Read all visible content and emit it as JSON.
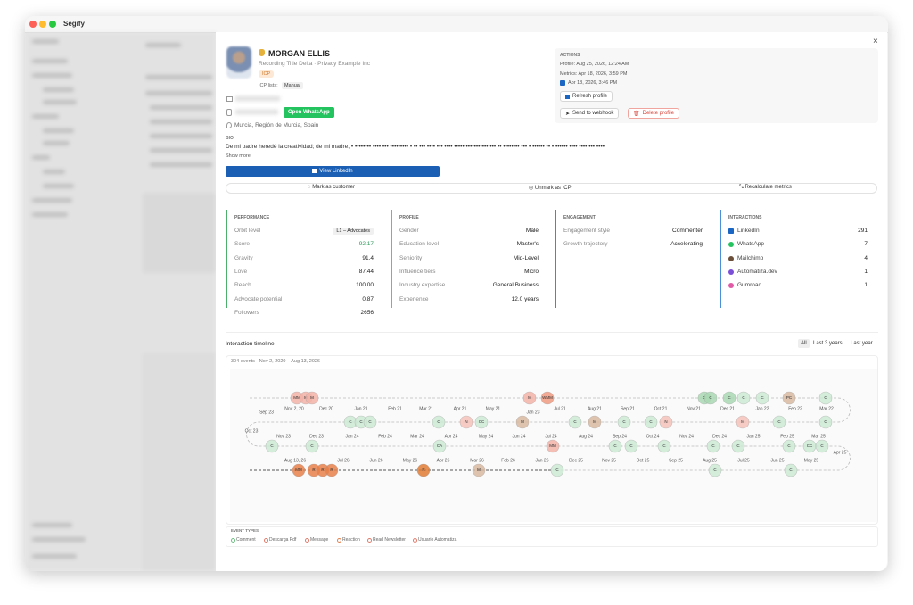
{
  "window": {
    "title": "Segify"
  },
  "profile": {
    "name": "MORGAN ELLIS",
    "subtitle": "Recording Title Delta · Privacy Example Inc",
    "badge": "ICP",
    "icp_lists_label": "ICP lists:",
    "icp_list": "Manual",
    "whatsapp_button": "Open WhatsApp",
    "location": "Murcia, Región de Murcia, Spain",
    "bio_label": "BIO",
    "bio": "De mi padre heredé la creatividad; de mi madre, • •••••••• •••• ••• ••••••••• • •• ••• •••• ••• •••• ••••• ••••••••••• ••• •• •••••••• ••• • •••••• •• • •••••• •••• •••• ••• ••••",
    "show_more": "Show more",
    "linkedin_button": "View LinkedIn"
  },
  "actions": {
    "label": "ACTIONS",
    "profile_updated": "Profile: Aug 25, 2026, 12:24 AM",
    "metrics_updated": "Metrics: Apr 18, 2026, 3:59 PM",
    "linkedin_updated": "Apr 18, 2026, 3:46 PM",
    "refresh": "Refresh profile",
    "webhook": "Send to webhook",
    "delete": "Delete profile"
  },
  "toolbar": [
    "Mark as customer",
    "Unmark as ICP",
    "Recalculate metrics"
  ],
  "sections": [
    {
      "title": "PERFORMANCE",
      "color": "#4caf6a",
      "rows": [
        {
          "label": "Orbit level",
          "value": "L1 – Advocates"
        },
        {
          "label": "Score",
          "value": "92.17",
          "color": "#2e9e5b"
        },
        {
          "label": "Gravity",
          "value": "91.4"
        },
        {
          "label": "Love",
          "value": "87.44"
        },
        {
          "label": "Reach",
          "value": "100.00"
        },
        {
          "label": "Advocate potential",
          "value": "0.87"
        },
        {
          "label": "Followers",
          "value": "2656"
        }
      ]
    },
    {
      "title": "PROFILE",
      "color": "#ef8a3c",
      "rows": [
        {
          "label": "Gender",
          "value": "Male"
        },
        {
          "label": "Education level",
          "value": "Master's"
        },
        {
          "label": "Seniority",
          "value": "Mid-Level"
        },
        {
          "label": "Influence tiers",
          "value": "Micro"
        },
        {
          "label": "Industry expertise",
          "value": "General Business"
        },
        {
          "label": "Experience",
          "value": "12.0 years"
        }
      ]
    },
    {
      "title": "ENGAGEMENT",
      "color": "#8a63d2",
      "rows": [
        {
          "label": "Engagement style",
          "value": "Commenter"
        },
        {
          "label": "Growth trajectory",
          "value": "Accelerating"
        }
      ]
    },
    {
      "title": "INTERACTIONS",
      "color": "#4a90d9",
      "rows": [
        {
          "label": "LinkedIn",
          "value": "291"
        },
        {
          "label": "WhatsApp",
          "value": "7"
        },
        {
          "label": "Mailchimp",
          "value": "4"
        },
        {
          "label": "Automatiza.dev",
          "value": "1"
        },
        {
          "label": "Gumroad",
          "value": "1"
        }
      ]
    }
  ],
  "timeline": {
    "title": "Interaction timeline",
    "filters": [
      "All",
      "Last 3 years",
      "Last year"
    ],
    "summary": "304 events · Nov 2, 2020 – Aug 13, 2026",
    "date_rows": [
      [
        "Nov 2, 20",
        "Dec 20",
        "Jan 21",
        "Feb 21",
        "Mar 21",
        "Apr 21",
        "May 21",
        "Jul 21",
        "Aug 21",
        "Sep 21",
        "Oct 21",
        "Nov 21",
        "Dec 21",
        "Jan 22",
        "Feb 22",
        "Mar 22"
      ],
      [
        "Nov 23",
        "Dec 23",
        "Jan 24",
        "Feb 24",
        "Mar 24",
        "Apr 24",
        "May 24",
        "Jun 24",
        "Jul 24",
        "Aug 24",
        "Sep 24",
        "Oct 24",
        "Nov 24",
        "Dec 24",
        "Jan 25",
        "Feb 25",
        "Mar 25"
      ],
      [
        "Aug 13, 26",
        "Jul 26",
        "Jun 26",
        "May 26",
        "Apr 26",
        "Mar 26",
        "Feb 26",
        "Jan 26",
        "Dec 25",
        "Nov 25",
        "Oct 25",
        "Sep 25",
        "Aug 25",
        "Jul 25",
        "Jun 25",
        "May 25"
      ]
    ],
    "extra_dates": [
      "Sep 23",
      "Jan 23",
      "Oct 23",
      "Apr 25"
    ],
    "event_rows": [
      [
        {
          "label": "MM",
          "color": "#f2b3a8"
        },
        {
          "label": "M",
          "color": "#f2b3a8"
        },
        {
          "label": "M",
          "color": "#f2b3a8"
        },
        {
          "label": "M",
          "color": "#f2b3a8"
        },
        {
          "label": "WMM",
          "color": "#ee9a80"
        },
        {
          "label": "C",
          "color": "#a9d8b3"
        },
        {
          "label": "C",
          "color": "#a9d8b3"
        },
        {
          "label": "C",
          "color": "#a9d8b3"
        },
        {
          "label": "C",
          "color": "#cde9d3"
        },
        {
          "label": "C",
          "color": "#cde9d3"
        },
        {
          "label": "PC",
          "color": "#d8b9a0"
        },
        {
          "label": "C",
          "color": "#cde9d3"
        }
      ],
      [
        {
          "label": "C",
          "color": "#cde9d3"
        },
        {
          "label": "C",
          "color": "#cde9d3"
        },
        {
          "label": "C",
          "color": "#cde9d3"
        },
        {
          "label": "C",
          "color": "#cde9d3"
        },
        {
          "label": "N",
          "color": "#f4c2b8"
        },
        {
          "label": "CC",
          "color": "#cde9d3"
        },
        {
          "label": "M",
          "color": "#d8b9a0"
        },
        {
          "label": "C",
          "color": "#cde9d3"
        },
        {
          "label": "M",
          "color": "#d8b9a0"
        },
        {
          "label": "C",
          "color": "#cde9d3"
        },
        {
          "label": "C",
          "color": "#cde9d3"
        },
        {
          "label": "N",
          "color": "#f4c2b8"
        },
        {
          "label": "M",
          "color": "#f4c2b8"
        },
        {
          "label": "C",
          "color": "#cde9d3"
        },
        {
          "label": "C",
          "color": "#cde9d3"
        }
      ],
      [
        {
          "label": "C",
          "color": "#cde9d3"
        },
        {
          "label": "C",
          "color": "#cde9d3"
        },
        {
          "label": "CA",
          "color": "#cde9d3"
        },
        {
          "label": "MM",
          "color": "#f2b3a8"
        },
        {
          "label": "C",
          "color": "#cde9d3"
        },
        {
          "label": "C",
          "color": "#cde9d3"
        },
        {
          "label": "C",
          "color": "#cde9d3"
        },
        {
          "label": "C",
          "color": "#cde9d3"
        },
        {
          "label": "C",
          "color": "#cde9d3"
        },
        {
          "label": "C",
          "color": "#cde9d3"
        },
        {
          "label": "CC",
          "color": "#cde9d3"
        },
        {
          "label": "C",
          "color": "#cde9d3"
        }
      ],
      [
        {
          "label": "MM",
          "color": "#e8804a"
        },
        {
          "label": "R",
          "color": "#e8804a"
        },
        {
          "label": "R",
          "color": "#e8804a"
        },
        {
          "label": "R",
          "color": "#e8804a"
        },
        {
          "label": "R",
          "color": "#e07b35"
        },
        {
          "label": "M",
          "color": "#d8b9a0"
        },
        {
          "label": "C",
          "color": "#cde9d3"
        },
        {
          "label": "C",
          "color": "#cde9d3"
        },
        {
          "label": "C",
          "color": "#cde9d3"
        }
      ]
    ],
    "legend_title": "EVENT TYPES",
    "event_types": [
      {
        "name": "Comment",
        "color": "#6cbf80"
      },
      {
        "name": "Descarga Pdf",
        "color": "#e07a6a"
      },
      {
        "name": "Message",
        "color": "#e07a6a"
      },
      {
        "name": "Reaction",
        "color": "#e8804a"
      },
      {
        "name": "Read Newsletter",
        "color": "#e07a6a"
      },
      {
        "name": "Usuario Automatiza",
        "color": "#e07a6a"
      }
    ]
  }
}
